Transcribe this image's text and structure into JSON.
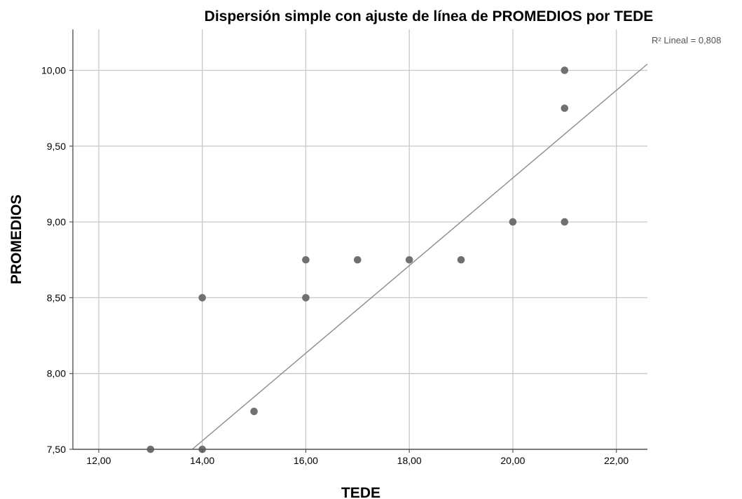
{
  "chart_data": {
    "type": "scatter",
    "title": "Dispersión simple con ajuste de línea de PROMEDIOS por TEDE",
    "xlabel": "TEDE",
    "ylabel": "PROMEDIOS",
    "xlim": [
      11.5,
      22.6
    ],
    "ylim": [
      7.5,
      10.27
    ],
    "x_ticks": [
      12,
      14,
      16,
      18,
      20,
      22
    ],
    "x_tick_labels": [
      "12,00",
      "14,00",
      "16,00",
      "18,00",
      "20,00",
      "22,00"
    ],
    "y_ticks": [
      7.5,
      8.0,
      8.5,
      9.0,
      9.5,
      10.0
    ],
    "y_tick_labels": [
      "7,50",
      "8,00",
      "8,50",
      "9,00",
      "9,50",
      "10,00"
    ],
    "grid": true,
    "points": [
      {
        "x": 13,
        "y": 7.5
      },
      {
        "x": 14,
        "y": 7.5
      },
      {
        "x": 14,
        "y": 8.5
      },
      {
        "x": 15,
        "y": 7.75
      },
      {
        "x": 16,
        "y": 8.5
      },
      {
        "x": 16,
        "y": 8.75
      },
      {
        "x": 17,
        "y": 8.75
      },
      {
        "x": 18,
        "y": 8.75
      },
      {
        "x": 19,
        "y": 8.75
      },
      {
        "x": 20,
        "y": 9.0
      },
      {
        "x": 21,
        "y": 9.0
      },
      {
        "x": 21,
        "y": 9.75
      },
      {
        "x": 21,
        "y": 10.0
      }
    ],
    "fit_line": {
      "intercept": 3.51,
      "slope": 0.289
    },
    "fit_label": "R² Lineal = 0,808",
    "colors": {
      "points": "#707070",
      "fit": "#8c8c8c",
      "grid": "#c8c8c8"
    }
  }
}
